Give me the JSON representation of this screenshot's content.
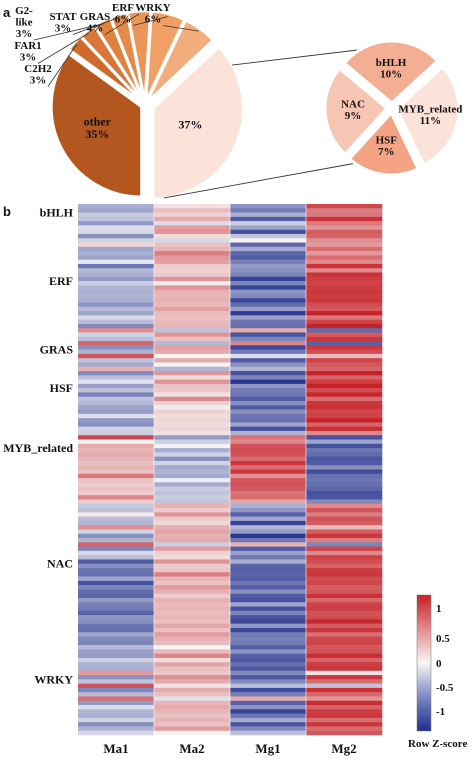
{
  "panels": {
    "a": "a",
    "b": "b"
  },
  "chart_data": [
    {
      "type": "pie",
      "title": "",
      "slices": [
        {
          "label": "other",
          "percent_label": "35%",
          "value": 35,
          "color": "#b4561f"
        },
        {
          "label": "C2H2",
          "percent_label": "3%",
          "value": 3,
          "color": "#cf6a2c"
        },
        {
          "label": "FAR1",
          "percent_label": "3%",
          "value": 3,
          "color": "#d9773a"
        },
        {
          "label": "G2-like",
          "percent_label": "3%",
          "value": 3,
          "color": "#e0813f"
        },
        {
          "label": "STAT",
          "percent_label": "3%",
          "value": 3,
          "color": "#e58a48"
        },
        {
          "label": "GRAS",
          "percent_label": "4%",
          "value": 4,
          "color": "#ea9556"
        },
        {
          "label": "ERF",
          "percent_label": "6%",
          "value": 6,
          "color": "#f0a065"
        },
        {
          "label": "WRKY",
          "percent_label": "6%",
          "value": 6,
          "color": "#f3ad7d"
        },
        {
          "label": "",
          "percent_label": "37%",
          "value": 37,
          "color": "#fbe3da"
        }
      ]
    },
    {
      "type": "pie",
      "title": "",
      "slices": [
        {
          "label": "bHLH",
          "percent_label": "10%",
          "value": 10,
          "color": "#f3ae93"
        },
        {
          "label": "MYB_related",
          "percent_label": "11%",
          "value": 11,
          "color": "#fbe3da"
        },
        {
          "label": "HSF",
          "percent_label": "7%",
          "value": 7,
          "color": "#f4a384"
        },
        {
          "label": "NAC",
          "percent_label": "9%",
          "value": 9,
          "color": "#f6c5b3"
        }
      ]
    },
    {
      "type": "heatmap",
      "title": "",
      "columns": [
        "Ma1",
        "Ma2",
        "Mg1",
        "Mg2"
      ],
      "row_group_labels": [
        "bHLH",
        "ERF",
        "GRAS",
        "HSF",
        "MYB_related",
        "NAC",
        "WRKY"
      ],
      "row_group_label_rows": [
        2,
        18,
        34,
        43,
        57,
        84,
        111
      ],
      "n_rows": 124,
      "colorbar": {
        "title": "Row Z-score",
        "ticks": [
          "1",
          "0.5",
          "0",
          "-0.5",
          "-1"
        ],
        "range": [
          -1.3,
          1.3
        ],
        "low_color": "#1f2e8c",
        "mid_color": "#f7f7f7",
        "high_color": "#c62128"
      },
      "row_patterns": [
        [
          -0.3,
          0.1,
          -0.5,
          1.0
        ],
        [
          -0.5,
          0.2,
          -0.8,
          0.9
        ],
        [
          -0.4,
          0.3,
          -0.6,
          0.8
        ],
        [
          -0.2,
          0.4,
          -0.9,
          1.1
        ],
        [
          -0.6,
          0.0,
          -0.3,
          0.9
        ],
        [
          -0.3,
          0.6,
          -0.7,
          0.6
        ],
        [
          -0.1,
          0.5,
          -1.0,
          0.8
        ],
        [
          -0.7,
          0.3,
          -0.4,
          1.0
        ],
        [
          -0.4,
          -0.2,
          0.2,
          0.6
        ],
        [
          0.3,
          0.2,
          -0.9,
          0.4
        ],
        [
          -0.6,
          0.5,
          -0.6,
          0.9
        ],
        [
          -0.3,
          0.7,
          -0.8,
          0.5
        ],
        [
          -0.5,
          0.4,
          -1.0,
          1.0
        ],
        [
          -0.2,
          0.6,
          -0.9,
          0.7
        ],
        [
          -0.7,
          0.2,
          -0.5,
          1.1
        ],
        [
          -0.4,
          0.4,
          -0.7,
          0.8
        ],
        [
          -0.6,
          0.3,
          -0.9,
          1.2
        ],
        [
          -0.5,
          0.5,
          -1.1,
          1.0
        ],
        [
          -0.3,
          0.2,
          -0.8,
          1.2
        ],
        [
          -0.6,
          0.6,
          -1.0,
          1.1
        ],
        [
          -0.4,
          0.3,
          -0.6,
          1.0
        ],
        [
          -0.5,
          0.5,
          -0.8,
          1.2
        ],
        [
          -0.3,
          0.4,
          -1.0,
          1.1
        ],
        [
          -0.6,
          0.2,
          -0.9,
          1.2
        ],
        [
          -0.5,
          0.6,
          -0.7,
          1.0
        ],
        [
          -0.4,
          0.3,
          -1.1,
          1.2
        ],
        [
          -0.2,
          0.5,
          -0.6,
          0.9
        ],
        [
          -0.5,
          0.4,
          -1.0,
          1.1
        ],
        [
          -0.6,
          0.3,
          -0.8,
          1.2
        ],
        [
          0.6,
          -0.2,
          0.4,
          -0.8
        ],
        [
          -0.4,
          0.6,
          -0.9,
          0.9
        ],
        [
          -0.3,
          0.2,
          -0.7,
          1.0
        ],
        [
          0.8,
          -0.3,
          0.6,
          -0.9
        ],
        [
          -0.5,
          0.5,
          -1.0,
          1.1
        ],
        [
          -0.4,
          0.3,
          -0.8,
          1.2
        ],
        [
          0.9,
          0.1,
          -0.3,
          0.4
        ],
        [
          -0.2,
          0.4,
          -0.9,
          1.0
        ],
        [
          -0.5,
          0.2,
          -0.7,
          1.1
        ],
        [
          0.3,
          -0.4,
          -0.6,
          0.9
        ],
        [
          -0.6,
          0.5,
          -1.0,
          1.2
        ],
        [
          -0.4,
          0.3,
          -0.8,
          1.0
        ],
        [
          -0.3,
          0.6,
          -1.1,
          1.1
        ],
        [
          -0.5,
          0.2,
          -0.6,
          1.2
        ],
        [
          -0.4,
          0.4,
          -0.9,
          1.1
        ],
        [
          -0.6,
          0.1,
          -0.7,
          1.2
        ],
        [
          -0.3,
          0.5,
          -1.0,
          1.0
        ],
        [
          -0.5,
          0.3,
          -0.8,
          1.2
        ],
        [
          -0.4,
          0.0,
          -0.9,
          1.1
        ],
        [
          -0.6,
          0.4,
          -0.7,
          1.2
        ],
        [
          -0.3,
          0.2,
          -1.0,
          1.1
        ],
        [
          -0.5,
          0.1,
          -0.8,
          1.2
        ],
        [
          -0.7,
          0.3,
          -0.6,
          1.0
        ],
        [
          -0.4,
          0.2,
          -0.9,
          1.2
        ],
        [
          -0.2,
          0.0,
          -0.4,
          0.5
        ],
        [
          1.0,
          -0.5,
          0.7,
          -1.0
        ],
        [
          0.2,
          -0.3,
          0.8,
          -0.6
        ],
        [
          0.5,
          -0.2,
          1.0,
          -0.9
        ],
        [
          0.3,
          -0.4,
          0.9,
          -0.8
        ],
        [
          0.6,
          -0.3,
          1.1,
          -1.0
        ],
        [
          0.4,
          -0.5,
          0.8,
          -0.9
        ],
        [
          0.2,
          -0.2,
          1.0,
          -1.0
        ],
        [
          0.5,
          -0.6,
          0.9,
          -0.8
        ],
        [
          0.3,
          -0.3,
          1.1,
          -1.0
        ],
        [
          0.6,
          -0.5,
          0.8,
          -0.9
        ],
        [
          0.4,
          -0.2,
          1.0,
          -1.0
        ],
        [
          0.2,
          -0.4,
          0.9,
          -0.8
        ],
        [
          0.5,
          -0.3,
          1.1,
          -1.0
        ],
        [
          0.3,
          -0.5,
          0.8,
          -0.9
        ],
        [
          0.6,
          -0.2,
          0.7,
          -1.0
        ],
        [
          0.4,
          -0.4,
          0.6,
          -0.8
        ],
        [
          -0.3,
          0.6,
          -0.5,
          0.8
        ],
        [
          -0.5,
          0.3,
          -0.8,
          1.0
        ],
        [
          0.2,
          0.5,
          -0.9,
          0.6
        ],
        [
          -0.4,
          0.4,
          -0.6,
          1.1
        ],
        [
          -0.6,
          0.2,
          -1.0,
          0.9
        ],
        [
          0.7,
          0.3,
          -0.4,
          0.2
        ],
        [
          -0.3,
          0.6,
          -0.7,
          1.0
        ],
        [
          -0.5,
          0.4,
          -1.1,
          1.1
        ],
        [
          -0.4,
          0.3,
          -0.8,
          0.9
        ],
        [
          0.8,
          -0.2,
          0.3,
          -0.7
        ],
        [
          -0.6,
          0.5,
          -0.9,
          1.0
        ],
        [
          -0.2,
          0.4,
          -0.6,
          0.8
        ],
        [
          -0.5,
          0.2,
          -1.0,
          1.1
        ],
        [
          -0.9,
          0.5,
          -0.4,
          0.9
        ],
        [
          -0.7,
          0.4,
          -1.0,
          1.0
        ],
        [
          -1.0,
          0.3,
          -0.8,
          1.1
        ],
        [
          -0.8,
          0.6,
          -0.9,
          1.0
        ],
        [
          -0.6,
          0.5,
          -1.1,
          1.1
        ],
        [
          -0.9,
          0.3,
          -0.7,
          1.0
        ],
        [
          -0.7,
          0.4,
          -1.0,
          1.1
        ],
        [
          -1.0,
          0.5,
          -0.8,
          1.0
        ],
        [
          -0.8,
          0.2,
          -0.9,
          1.1
        ],
        [
          -0.6,
          0.6,
          -1.1,
          1.0
        ],
        [
          -0.9,
          0.4,
          -0.7,
          1.1
        ],
        [
          -0.7,
          0.3,
          -1.0,
          1.0
        ],
        [
          -1.0,
          0.5,
          -0.8,
          1.1
        ],
        [
          -0.8,
          0.4,
          -0.9,
          1.0
        ],
        [
          -0.6,
          0.2,
          -1.1,
          1.1
        ],
        [
          -0.9,
          0.6,
          -0.7,
          1.0
        ],
        [
          -0.7,
          0.3,
          -1.0,
          1.1
        ],
        [
          -0.5,
          0.4,
          -0.8,
          1.0
        ],
        [
          -0.8,
          0.5,
          -0.9,
          1.1
        ],
        [
          -0.6,
          0.3,
          -0.7,
          1.0
        ],
        [
          -0.4,
          0.2,
          -1.0,
          1.1
        ],
        [
          -0.7,
          0.4,
          -0.8,
          1.0
        ],
        [
          -0.5,
          0.6,
          -0.9,
          1.1
        ],
        [
          -0.3,
          0.3,
          -1.1,
          1.0
        ],
        [
          -0.6,
          0.5,
          -0.7,
          1.1
        ],
        [
          -0.4,
          0.2,
          -1.0,
          1.0
        ],
        [
          0.5,
          0.4,
          -0.8,
          0.2
        ],
        [
          -0.5,
          0.6,
          -0.9,
          1.1
        ],
        [
          -0.3,
          0.3,
          -0.7,
          1.0
        ],
        [
          0.9,
          0.2,
          -0.5,
          -0.3
        ],
        [
          -0.6,
          0.4,
          -1.0,
          1.1
        ],
        [
          -0.4,
          0.5,
          -0.8,
          1.0
        ],
        [
          0.7,
          -0.1,
          0.3,
          0.6
        ],
        [
          -0.5,
          0.3,
          -0.9,
          1.1
        ],
        [
          -0.2,
          0.6,
          -0.7,
          1.0
        ],
        [
          -0.6,
          0.4,
          -1.0,
          1.1
        ],
        [
          -0.4,
          0.2,
          -0.8,
          1.0
        ],
        [
          -0.3,
          0.5,
          -0.6,
          0.9
        ],
        [
          -0.5,
          0.3,
          -0.9,
          1.1
        ],
        [
          -0.4,
          0.4,
          -0.7,
          1.0
        ]
      ]
    }
  ]
}
